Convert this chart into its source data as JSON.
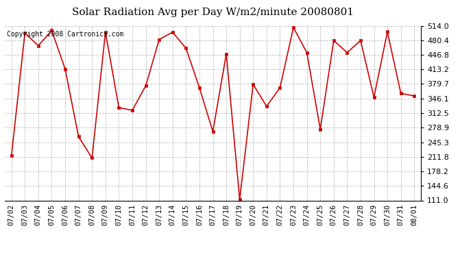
{
  "title": "Solar Radiation Avg per Day W/m2/minute 20080801",
  "copyright": "Copyright 2008 Cartronics.com",
  "dates": [
    "07/02",
    "07/03",
    "07/04",
    "07/05",
    "07/06",
    "07/07",
    "07/08",
    "07/09",
    "07/10",
    "07/11",
    "07/12",
    "07/13",
    "07/14",
    "07/15",
    "07/16",
    "07/17",
    "07/18",
    "07/19",
    "07/20",
    "07/21",
    "07/22",
    "07/23",
    "07/24",
    "07/25",
    "07/26",
    "07/27",
    "07/28",
    "07/29",
    "07/30",
    "07/31",
    "08/01"
  ],
  "values": [
    214,
    497,
    468,
    503,
    414,
    258,
    209,
    499,
    325,
    319,
    375,
    482,
    499,
    462,
    371,
    270,
    449,
    113,
    379,
    328,
    371,
    510,
    452,
    275,
    480,
    452,
    480,
    349,
    500,
    358,
    352
  ],
  "y_ticks": [
    111.0,
    144.6,
    178.2,
    211.8,
    245.3,
    278.9,
    312.5,
    346.1,
    379.7,
    413.2,
    446.8,
    480.4,
    514.0
  ],
  "ylim": [
    111.0,
    514.0
  ],
  "line_color": "#cc0000",
  "marker_color": "#cc0000",
  "background_color": "#ffffff",
  "grid_color": "#bbbbbb",
  "title_fontsize": 11,
  "copyright_fontsize": 7,
  "tick_fontsize": 7.5,
  "ytick_fontsize": 8
}
